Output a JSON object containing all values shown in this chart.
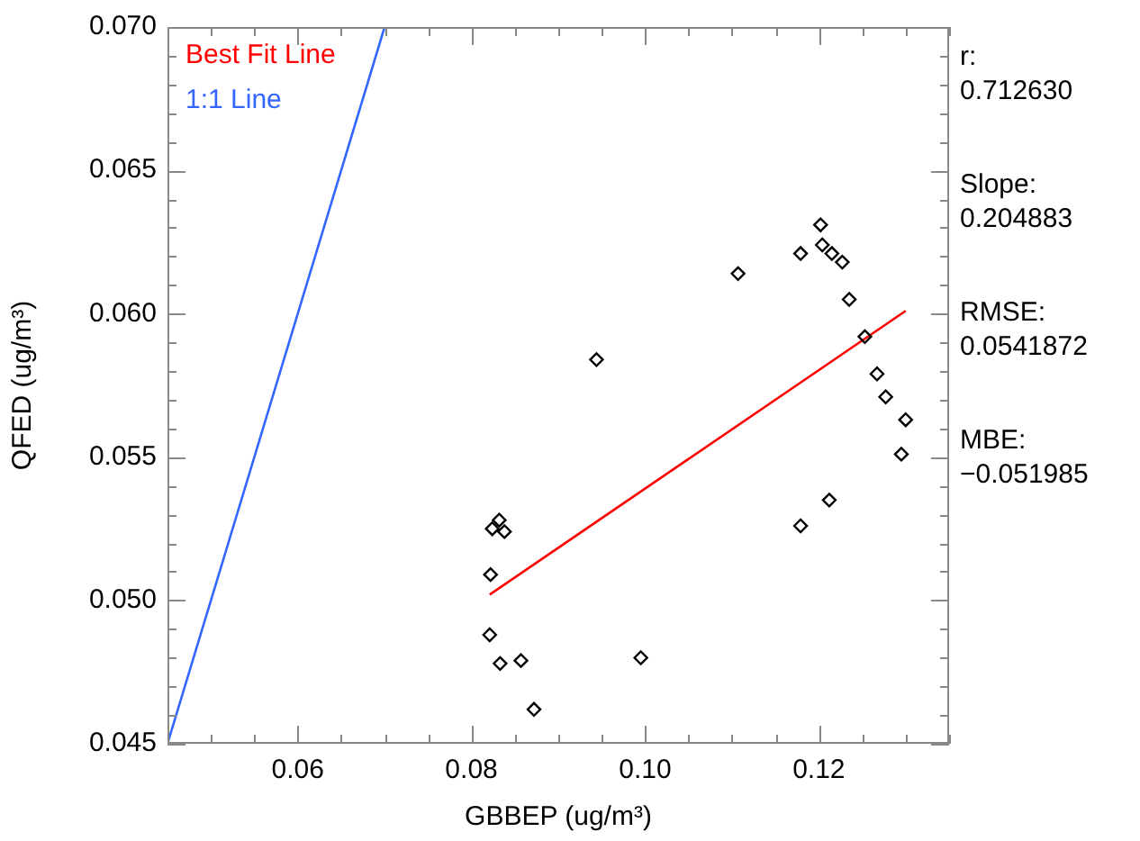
{
  "chart_data": {
    "type": "scatter",
    "xlabel": "GBBEP (ug/m³)",
    "ylabel": "QFED (ug/m³)",
    "xlim": [
      0.045,
      0.135
    ],
    "ylim": [
      0.045,
      0.07
    ],
    "xticks": [
      {
        "value": 0.045,
        "label": null
      },
      {
        "value": 0.05,
        "label": null
      },
      {
        "value": 0.055,
        "label": null
      },
      {
        "value": 0.06,
        "label": "0.06"
      },
      {
        "value": 0.065,
        "label": null
      },
      {
        "value": 0.07,
        "label": null
      },
      {
        "value": 0.075,
        "label": null
      },
      {
        "value": 0.08,
        "label": "0.08"
      },
      {
        "value": 0.085,
        "label": null
      },
      {
        "value": 0.09,
        "label": null
      },
      {
        "value": 0.095,
        "label": null
      },
      {
        "value": 0.1,
        "label": "0.10"
      },
      {
        "value": 0.105,
        "label": null
      },
      {
        "value": 0.11,
        "label": null
      },
      {
        "value": 0.115,
        "label": null
      },
      {
        "value": 0.12,
        "label": "0.12"
      },
      {
        "value": 0.125,
        "label": null
      },
      {
        "value": 0.13,
        "label": null
      },
      {
        "value": 0.135,
        "label": null
      }
    ],
    "yticks": [
      {
        "value": 0.045,
        "label": "0.045"
      },
      {
        "value": 0.046,
        "label": null
      },
      {
        "value": 0.047,
        "label": null
      },
      {
        "value": 0.048,
        "label": null
      },
      {
        "value": 0.049,
        "label": null
      },
      {
        "value": 0.05,
        "label": "0.050"
      },
      {
        "value": 0.051,
        "label": null
      },
      {
        "value": 0.052,
        "label": null
      },
      {
        "value": 0.053,
        "label": null
      },
      {
        "value": 0.054,
        "label": null
      },
      {
        "value": 0.055,
        "label": "0.055"
      },
      {
        "value": 0.056,
        "label": null
      },
      {
        "value": 0.057,
        "label": null
      },
      {
        "value": 0.058,
        "label": null
      },
      {
        "value": 0.059,
        "label": null
      },
      {
        "value": 0.06,
        "label": "0.060"
      },
      {
        "value": 0.061,
        "label": null
      },
      {
        "value": 0.062,
        "label": null
      },
      {
        "value": 0.063,
        "label": null
      },
      {
        "value": 0.064,
        "label": null
      },
      {
        "value": 0.065,
        "label": "0.065"
      },
      {
        "value": 0.066,
        "label": null
      },
      {
        "value": 0.067,
        "label": null
      },
      {
        "value": 0.068,
        "label": null
      },
      {
        "value": 0.069,
        "label": null
      },
      {
        "value": 0.07,
        "label": "0.070"
      }
    ],
    "grid": false,
    "legend": "top left",
    "series": [
      {
        "marker": "diamond",
        "color": "#000000",
        "x": [
          0.1202,
          0.1179,
          0.1204,
          0.1215,
          0.1227,
          0.1107,
          0.1235,
          0.1253,
          0.1267,
          0.1277,
          0.13,
          0.1295,
          0.1212,
          0.1179,
          0.0944,
          0.0832,
          0.0824,
          0.0838,
          0.0822,
          0.0821,
          0.0833,
          0.0857,
          0.0995,
          0.0872
        ],
        "values": [
          0.0631,
          0.0621,
          0.0624,
          0.0621,
          0.0618,
          0.0614,
          0.0605,
          0.0592,
          0.0579,
          0.0571,
          0.0563,
          0.0551,
          0.0535,
          0.0526,
          0.0584,
          0.0528,
          0.0525,
          0.0524,
          0.0509,
          0.0488,
          0.0478,
          0.0479,
          0.048,
          0.0462
        ]
      },
      {
        "type": "line",
        "marker": "none",
        "name": "Best Fit Line",
        "color": "#ff0000",
        "x": [
          0.0821,
          0.13
        ],
        "values": [
          0.0502,
          0.0601
        ]
      },
      {
        "type": "line",
        "marker": "none",
        "name": "1:1 Line",
        "color": "#3366ff",
        "x": [
          0.045,
          0.07
        ],
        "values": [
          0.045,
          0.07
        ]
      }
    ],
    "annotations": [
      "r:",
      "0.712630",
      "Slope:",
      "0.204883",
      "RMSE:",
      "0.0541872",
      "MBE:",
      "−0.051985"
    ]
  }
}
